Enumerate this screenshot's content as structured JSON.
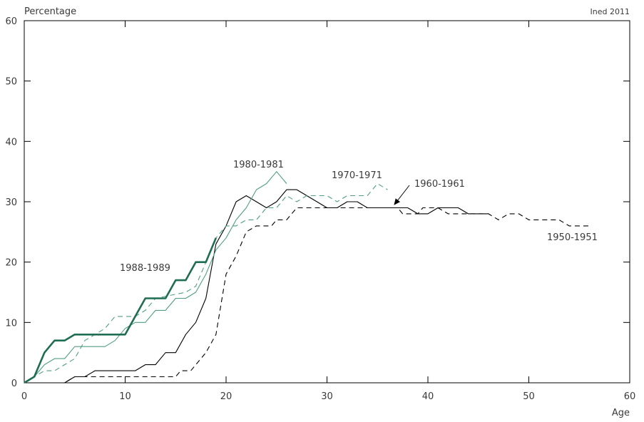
{
  "chart_data": {
    "type": "line",
    "ylabel": "Percentage",
    "xlabel": "Age",
    "credit": "Ined 2011",
    "xlim": [
      0,
      60
    ],
    "ylim": [
      0,
      60
    ],
    "xticks": [
      "0",
      "10",
      "20",
      "30",
      "40",
      "50",
      "60"
    ],
    "yticks": [
      "0",
      "10",
      "20",
      "30",
      "40",
      "50",
      "60"
    ],
    "grid": false,
    "series": [
      {
        "name": "1950-1951",
        "color": "#000000",
        "style": "dashed",
        "width": 1.1,
        "points": [
          [
            0,
            0
          ],
          [
            4,
            0
          ],
          [
            5,
            1
          ],
          [
            15,
            1
          ],
          [
            15.5,
            2
          ],
          [
            16.5,
            2
          ],
          [
            18,
            5
          ],
          [
            19,
            8
          ],
          [
            20,
            18
          ],
          [
            21,
            21
          ],
          [
            22,
            25
          ],
          [
            23,
            26
          ],
          [
            24.5,
            26
          ],
          [
            25,
            27
          ],
          [
            26,
            27
          ],
          [
            27,
            29
          ],
          [
            37,
            29
          ],
          [
            37.5,
            28
          ],
          [
            39,
            28
          ],
          [
            39.5,
            29
          ],
          [
            41,
            29
          ],
          [
            42,
            28
          ],
          [
            46,
            28
          ],
          [
            47,
            27
          ],
          [
            48,
            28
          ],
          [
            49,
            28
          ],
          [
            50,
            27
          ],
          [
            53,
            27
          ],
          [
            54,
            26
          ],
          [
            56,
            26
          ]
        ]
      },
      {
        "name": "1960-1961",
        "color": "#000000",
        "style": "solid",
        "width": 1.1,
        "points": [
          [
            0,
            0
          ],
          [
            4,
            0
          ],
          [
            5,
            1
          ],
          [
            6,
            1
          ],
          [
            7,
            2
          ],
          [
            11,
            2
          ],
          [
            12,
            3
          ],
          [
            13,
            3
          ],
          [
            14,
            5
          ],
          [
            15,
            5
          ],
          [
            16,
            8
          ],
          [
            17,
            10
          ],
          [
            18,
            14
          ],
          [
            19,
            23
          ],
          [
            20,
            26
          ],
          [
            21,
            30
          ],
          [
            22,
            31
          ],
          [
            23,
            30
          ],
          [
            24,
            29
          ],
          [
            25,
            30
          ],
          [
            26,
            32
          ],
          [
            27,
            32
          ],
          [
            28,
            31
          ],
          [
            29,
            30
          ],
          [
            30,
            29
          ],
          [
            31,
            29
          ],
          [
            32,
            30
          ],
          [
            33,
            30
          ],
          [
            34,
            29
          ],
          [
            38,
            29
          ],
          [
            39,
            28
          ],
          [
            40,
            28
          ],
          [
            41,
            29
          ],
          [
            43,
            29
          ],
          [
            44,
            28
          ],
          [
            46,
            28
          ]
        ]
      },
      {
        "name": "1970-1971",
        "color": "#4f9e82",
        "style": "dashed",
        "width": 1.1,
        "points": [
          [
            0,
            0
          ],
          [
            1,
            1
          ],
          [
            2,
            2
          ],
          [
            3,
            2
          ],
          [
            4,
            3
          ],
          [
            5,
            4
          ],
          [
            6,
            7
          ],
          [
            7,
            8
          ],
          [
            8,
            9
          ],
          [
            9,
            11
          ],
          [
            11,
            11
          ],
          [
            12,
            12
          ],
          [
            13,
            14
          ],
          [
            16,
            15
          ],
          [
            17,
            16
          ],
          [
            18,
            20
          ],
          [
            19,
            24
          ],
          [
            20,
            26
          ],
          [
            21,
            26
          ],
          [
            22,
            27
          ],
          [
            23,
            27
          ],
          [
            24,
            29
          ],
          [
            25,
            29
          ],
          [
            26,
            31
          ],
          [
            27,
            30
          ],
          [
            28,
            31
          ],
          [
            30,
            31
          ],
          [
            31,
            30
          ],
          [
            32,
            31
          ],
          [
            34,
            31
          ],
          [
            35,
            33
          ],
          [
            36,
            32
          ]
        ]
      },
      {
        "name": "1980-1981",
        "color": "#4f9e82",
        "style": "solid",
        "width": 1.1,
        "points": [
          [
            0,
            0
          ],
          [
            1,
            1
          ],
          [
            2,
            3
          ],
          [
            3,
            4
          ],
          [
            4,
            4
          ],
          [
            5,
            6
          ],
          [
            6,
            6
          ],
          [
            8,
            6
          ],
          [
            9,
            7
          ],
          [
            10,
            9
          ],
          [
            11,
            10
          ],
          [
            12,
            10
          ],
          [
            13,
            12
          ],
          [
            14,
            12
          ],
          [
            15,
            14
          ],
          [
            16,
            14
          ],
          [
            17,
            15
          ],
          [
            18,
            18
          ],
          [
            19,
            22
          ],
          [
            20,
            24
          ],
          [
            21,
            27
          ],
          [
            22,
            29
          ],
          [
            23,
            32
          ],
          [
            24,
            33
          ],
          [
            25,
            35
          ],
          [
            26,
            33
          ]
        ]
      },
      {
        "name": "1988-1989",
        "color": "#1f6e52",
        "style": "solid",
        "width": 2.6,
        "points": [
          [
            0,
            0
          ],
          [
            1,
            1
          ],
          [
            2,
            5
          ],
          [
            3,
            7
          ],
          [
            4,
            7
          ],
          [
            5,
            8
          ],
          [
            10,
            8
          ],
          [
            11,
            11
          ],
          [
            12,
            14
          ],
          [
            14,
            14
          ],
          [
            15,
            17
          ],
          [
            16,
            17
          ],
          [
            17,
            20
          ],
          [
            18,
            20
          ],
          [
            19,
            24
          ]
        ]
      }
    ],
    "annotations": [
      {
        "text": "1980-1981",
        "series": "1980-1981"
      },
      {
        "text": "1970-1971",
        "series": "1970-1971"
      },
      {
        "text": "1960-1961",
        "series": "1960-1961"
      },
      {
        "text": "1950-1951",
        "series": "1950-1951"
      },
      {
        "text": "1988-1989",
        "series": "1988-1989"
      }
    ]
  }
}
